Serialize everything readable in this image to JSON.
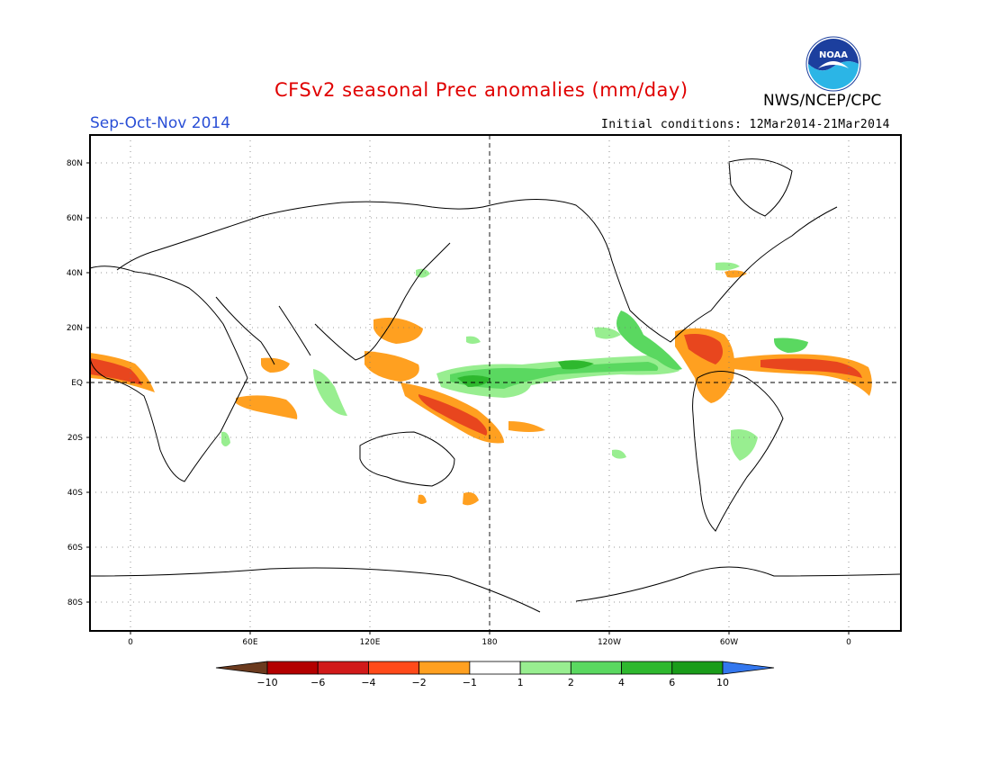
{
  "header": {
    "title": "CFSv2 seasonal Prec anomalies (mm/day)",
    "season": "Sep-Oct-Nov 2014",
    "agency": "NWS/NCEP/CPC",
    "initial_conditions": "Initial conditions: 12Mar2014-21Mar2014"
  },
  "logo": {
    "text": "NOAA",
    "icon": "noaa-logo"
  },
  "axes": {
    "lat_ticks": [
      "80N",
      "60N",
      "40N",
      "20N",
      "EQ",
      "20S",
      "40S",
      "60S",
      "80S"
    ],
    "lon_ticks": [
      "0",
      "60E",
      "120E",
      "180",
      "120W",
      "60W",
      "0"
    ]
  },
  "colorbar": {
    "labels": [
      "-10",
      "-6",
      "-4",
      "-2",
      "-1",
      "1",
      "2",
      "4",
      "6",
      "10"
    ],
    "colors": [
      "#6b3a1e",
      "#b30000",
      "#d11a1a",
      "#ff4a1a",
      "#ffa020",
      "#ffffff",
      "#98ee90",
      "#5ad860",
      "#2eb82e",
      "#1a9c1a",
      "#3377ee"
    ]
  },
  "colors": {
    "dry_strong": "#e8461e",
    "dry_weak": "#ffa020",
    "wet_weak": "#98ee90",
    "wet_mid": "#5ad860",
    "wet_strong": "#2eb82e"
  }
}
